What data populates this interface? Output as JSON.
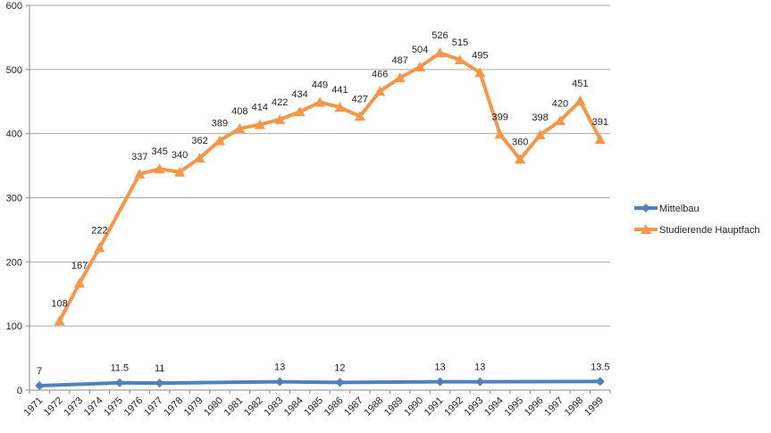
{
  "chart_data": {
    "type": "line",
    "title": "",
    "xlabel": "",
    "ylabel": "",
    "ylim": [
      0,
      600
    ],
    "yticks": [
      0,
      100,
      200,
      300,
      400,
      500,
      600
    ],
    "grid": true,
    "legend_position": "right",
    "categories": [
      "1971",
      "1972",
      "1973",
      "1974",
      "1975",
      "1976",
      "1977",
      "1978",
      "1979",
      "1980",
      "1981",
      "1982",
      "1983",
      "1984",
      "1985",
      "1986",
      "1987",
      "1988",
      "1989",
      "1990",
      "1991",
      "1992",
      "1993",
      "1994",
      "1995",
      "1996",
      "1997",
      "1998",
      "1999"
    ],
    "series": [
      {
        "name": "Mittelbau",
        "color": "#4f81bd",
        "marker": "diamond",
        "values": [
          7,
          null,
          null,
          null,
          11.5,
          null,
          11,
          null,
          null,
          null,
          null,
          null,
          13,
          null,
          null,
          12,
          null,
          null,
          null,
          null,
          13,
          null,
          13,
          null,
          null,
          null,
          null,
          null,
          13.5
        ],
        "labels": [
          "7",
          null,
          null,
          null,
          "11.5",
          null,
          "11",
          null,
          null,
          null,
          null,
          null,
          "13",
          null,
          null,
          "12",
          null,
          null,
          null,
          null,
          "13",
          null,
          "13",
          null,
          null,
          null,
          null,
          null,
          "13.5"
        ]
      },
      {
        "name": "Studierende Hauptfach",
        "color": "#f79646",
        "marker": "triangle",
        "values": [
          null,
          108,
          167,
          222,
          null,
          337,
          345,
          340,
          362,
          389,
          408,
          414,
          422,
          434,
          449,
          441,
          427,
          466,
          487,
          504,
          526,
          515,
          495,
          399,
          360,
          398,
          420,
          451,
          391
        ],
        "labels": [
          null,
          "108",
          "167",
          "222",
          null,
          "337",
          "345",
          "340",
          "362",
          "389",
          "408",
          "414",
          "422",
          "434",
          "449",
          "441",
          "427",
          "466",
          "487",
          "504",
          "526",
          "515",
          "495",
          "399",
          "360",
          "398",
          "420",
          "451",
          "391"
        ]
      }
    ]
  }
}
